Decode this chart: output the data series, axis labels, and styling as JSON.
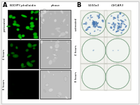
{
  "fig_width": 2.0,
  "fig_height": 1.5,
  "dpi": 100,
  "background_color": "#f0eeea",
  "panel_A_label": "A",
  "panel_B_label": "B",
  "panel_A_col_headers": [
    "BODIPY-phalloidin",
    "phase"
  ],
  "panel_B_col_headers": [
    "S100a3",
    "OVCAR3"
  ],
  "row_labels_A": [
    "pretreated",
    "4 hours",
    "8 hours"
  ],
  "row_labels_B": [
    "untreated",
    "4 hours",
    "8 hours"
  ],
  "cell_brightness": [
    0.9,
    0.65,
    0.15
  ],
  "n_fluor_cells": [
    22,
    16,
    5
  ],
  "n_phase_cells": [
    25,
    20,
    12
  ],
  "plate_bg_color": "#f0f4f0",
  "plate_border_color": "#a0b8a8",
  "plate_square_bg": "#e8ece8",
  "colony_color_untreated": "#4a7ab5",
  "n_colonies": [
    45,
    40
  ],
  "phase_bg": "#c8c8c8"
}
